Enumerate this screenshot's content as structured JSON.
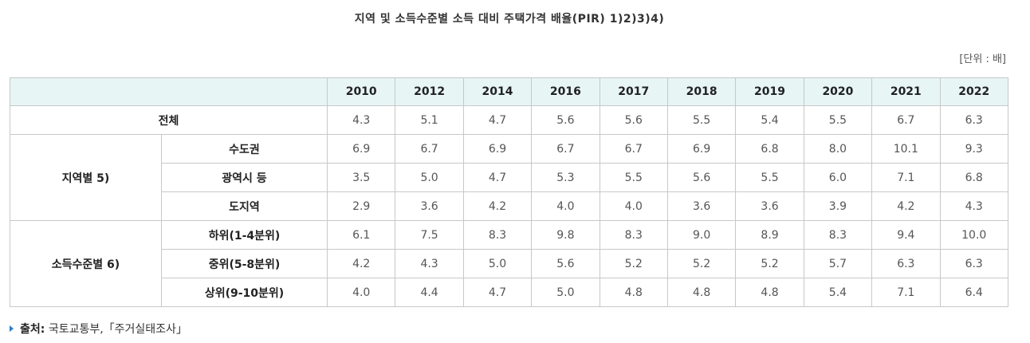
{
  "title": "지역 및 소득수준별 소득 대비 주택가격 배율(PIR) 1)2)3)4)",
  "unit": "[단위 : 배]",
  "years": [
    "2010",
    "2012",
    "2014",
    "2016",
    "2017",
    "2018",
    "2019",
    "2020",
    "2021",
    "2022"
  ],
  "total": {
    "label": "전체",
    "values": [
      "4.3",
      "5.1",
      "4.7",
      "5.6",
      "5.6",
      "5.5",
      "5.4",
      "5.5",
      "6.7",
      "6.3"
    ]
  },
  "region": {
    "label": "지역별 5)",
    "rows": [
      {
        "label": "수도권",
        "values": [
          "6.9",
          "6.7",
          "6.9",
          "6.7",
          "6.7",
          "6.9",
          "6.8",
          "8.0",
          "10.1",
          "9.3"
        ]
      },
      {
        "label": "광역시 등",
        "values": [
          "3.5",
          "5.0",
          "4.7",
          "5.3",
          "5.5",
          "5.6",
          "5.5",
          "6.0",
          "7.1",
          "6.8"
        ]
      },
      {
        "label": "도지역",
        "values": [
          "2.9",
          "3.6",
          "4.2",
          "4.0",
          "4.0",
          "3.6",
          "3.6",
          "3.9",
          "4.2",
          "4.3"
        ]
      }
    ]
  },
  "income": {
    "label": "소득수준별 6)",
    "rows": [
      {
        "label": "하위(1-4분위)",
        "values": [
          "6.1",
          "7.5",
          "8.3",
          "9.8",
          "8.3",
          "9.0",
          "8.9",
          "8.3",
          "9.4",
          "10.0"
        ]
      },
      {
        "label": "중위(5-8분위)",
        "values": [
          "4.2",
          "4.3",
          "5.0",
          "5.6",
          "5.2",
          "5.2",
          "5.2",
          "5.7",
          "6.3",
          "6.3"
        ]
      },
      {
        "label": "상위(9-10분위)",
        "values": [
          "4.0",
          "4.4",
          "4.7",
          "5.0",
          "4.8",
          "4.8",
          "4.8",
          "5.4",
          "7.1",
          "6.4"
        ]
      }
    ]
  },
  "source": {
    "label": "출처:",
    "text": "국토교통부,「주거실태조사」"
  }
}
